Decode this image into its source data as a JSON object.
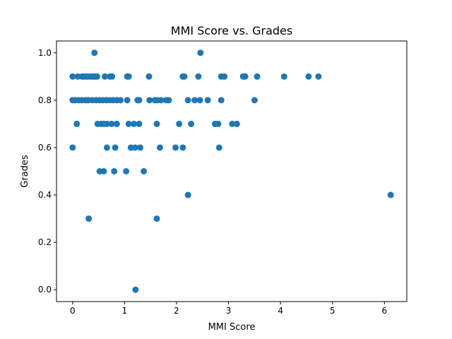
{
  "chart_data": {
    "type": "scatter",
    "title": "MMI Score vs. Grades",
    "xlabel": "MMI Score",
    "ylabel": "Grades",
    "xlim": [
      -0.31,
      6.43
    ],
    "ylim": [
      -0.05,
      1.05
    ],
    "xticks": [
      0,
      1,
      2,
      3,
      4,
      5,
      6
    ],
    "yticks": [
      0.0,
      0.2,
      0.4,
      0.6,
      0.8,
      1.0
    ],
    "xtick_labels": [
      "0",
      "1",
      "2",
      "3",
      "4",
      "5",
      "6"
    ],
    "ytick_labels": [
      "0.0",
      "0.2",
      "0.4",
      "0.6",
      "0.8",
      "1.0"
    ],
    "grid": false,
    "legend": "none",
    "marker_color": "#1f77b4",
    "series": [
      {
        "points": [
          [
            0.0,
            0.9
          ],
          [
            0.1,
            0.9
          ],
          [
            0.18,
            0.9
          ],
          [
            0.22,
            0.9
          ],
          [
            0.26,
            0.9
          ],
          [
            0.3,
            0.9
          ],
          [
            0.36,
            0.9
          ],
          [
            0.4,
            0.9
          ],
          [
            0.43,
            0.9
          ],
          [
            0.47,
            0.9
          ],
          [
            0.62,
            0.9
          ],
          [
            0.72,
            0.9
          ],
          [
            0.76,
            0.9
          ],
          [
            1.05,
            0.9
          ],
          [
            1.08,
            0.9
          ],
          [
            1.47,
            0.9
          ],
          [
            2.12,
            0.9
          ],
          [
            2.15,
            0.9
          ],
          [
            2.42,
            0.9
          ],
          [
            2.86,
            0.9
          ],
          [
            2.92,
            0.9
          ],
          [
            3.28,
            0.9
          ],
          [
            3.32,
            0.9
          ],
          [
            3.55,
            0.9
          ],
          [
            4.07,
            0.9
          ],
          [
            4.54,
            0.9
          ],
          [
            4.73,
            0.9
          ],
          [
            0.42,
            1.0
          ],
          [
            2.46,
            1.0
          ],
          [
            0.0,
            0.8
          ],
          [
            0.05,
            0.8
          ],
          [
            0.12,
            0.8
          ],
          [
            0.18,
            0.8
          ],
          [
            0.25,
            0.8
          ],
          [
            0.3,
            0.8
          ],
          [
            0.38,
            0.8
          ],
          [
            0.45,
            0.8
          ],
          [
            0.52,
            0.8
          ],
          [
            0.58,
            0.8
          ],
          [
            0.65,
            0.8
          ],
          [
            0.72,
            0.8
          ],
          [
            0.78,
            0.8
          ],
          [
            0.85,
            0.8
          ],
          [
            0.92,
            0.8
          ],
          [
            1.05,
            0.8
          ],
          [
            1.25,
            0.8
          ],
          [
            1.28,
            0.8
          ],
          [
            1.48,
            0.8
          ],
          [
            1.58,
            0.8
          ],
          [
            1.63,
            0.8
          ],
          [
            1.7,
            0.8
          ],
          [
            1.8,
            0.8
          ],
          [
            1.85,
            0.8
          ],
          [
            2.22,
            0.8
          ],
          [
            2.35,
            0.8
          ],
          [
            2.45,
            0.8
          ],
          [
            2.6,
            0.8
          ],
          [
            2.86,
            0.8
          ],
          [
            3.5,
            0.8
          ],
          [
            0.08,
            0.7
          ],
          [
            0.48,
            0.7
          ],
          [
            0.55,
            0.7
          ],
          [
            0.6,
            0.7
          ],
          [
            0.66,
            0.7
          ],
          [
            0.75,
            0.7
          ],
          [
            0.85,
            0.7
          ],
          [
            1.08,
            0.7
          ],
          [
            1.18,
            0.7
          ],
          [
            1.28,
            0.7
          ],
          [
            1.62,
            0.7
          ],
          [
            2.05,
            0.7
          ],
          [
            2.28,
            0.7
          ],
          [
            2.74,
            0.7
          ],
          [
            2.8,
            0.7
          ],
          [
            3.07,
            0.7
          ],
          [
            3.16,
            0.7
          ],
          [
            0.0,
            0.6
          ],
          [
            0.66,
            0.6
          ],
          [
            0.82,
            0.6
          ],
          [
            1.12,
            0.6
          ],
          [
            1.2,
            0.6
          ],
          [
            1.3,
            0.6
          ],
          [
            1.68,
            0.6
          ],
          [
            1.98,
            0.6
          ],
          [
            2.12,
            0.6
          ],
          [
            2.82,
            0.6
          ],
          [
            0.52,
            0.5
          ],
          [
            0.6,
            0.5
          ],
          [
            0.8,
            0.5
          ],
          [
            1.03,
            0.5
          ],
          [
            1.37,
            0.5
          ],
          [
            2.22,
            0.4
          ],
          [
            6.12,
            0.4
          ],
          [
            0.31,
            0.3
          ],
          [
            1.62,
            0.3
          ],
          [
            1.21,
            0.0
          ]
        ]
      }
    ]
  }
}
